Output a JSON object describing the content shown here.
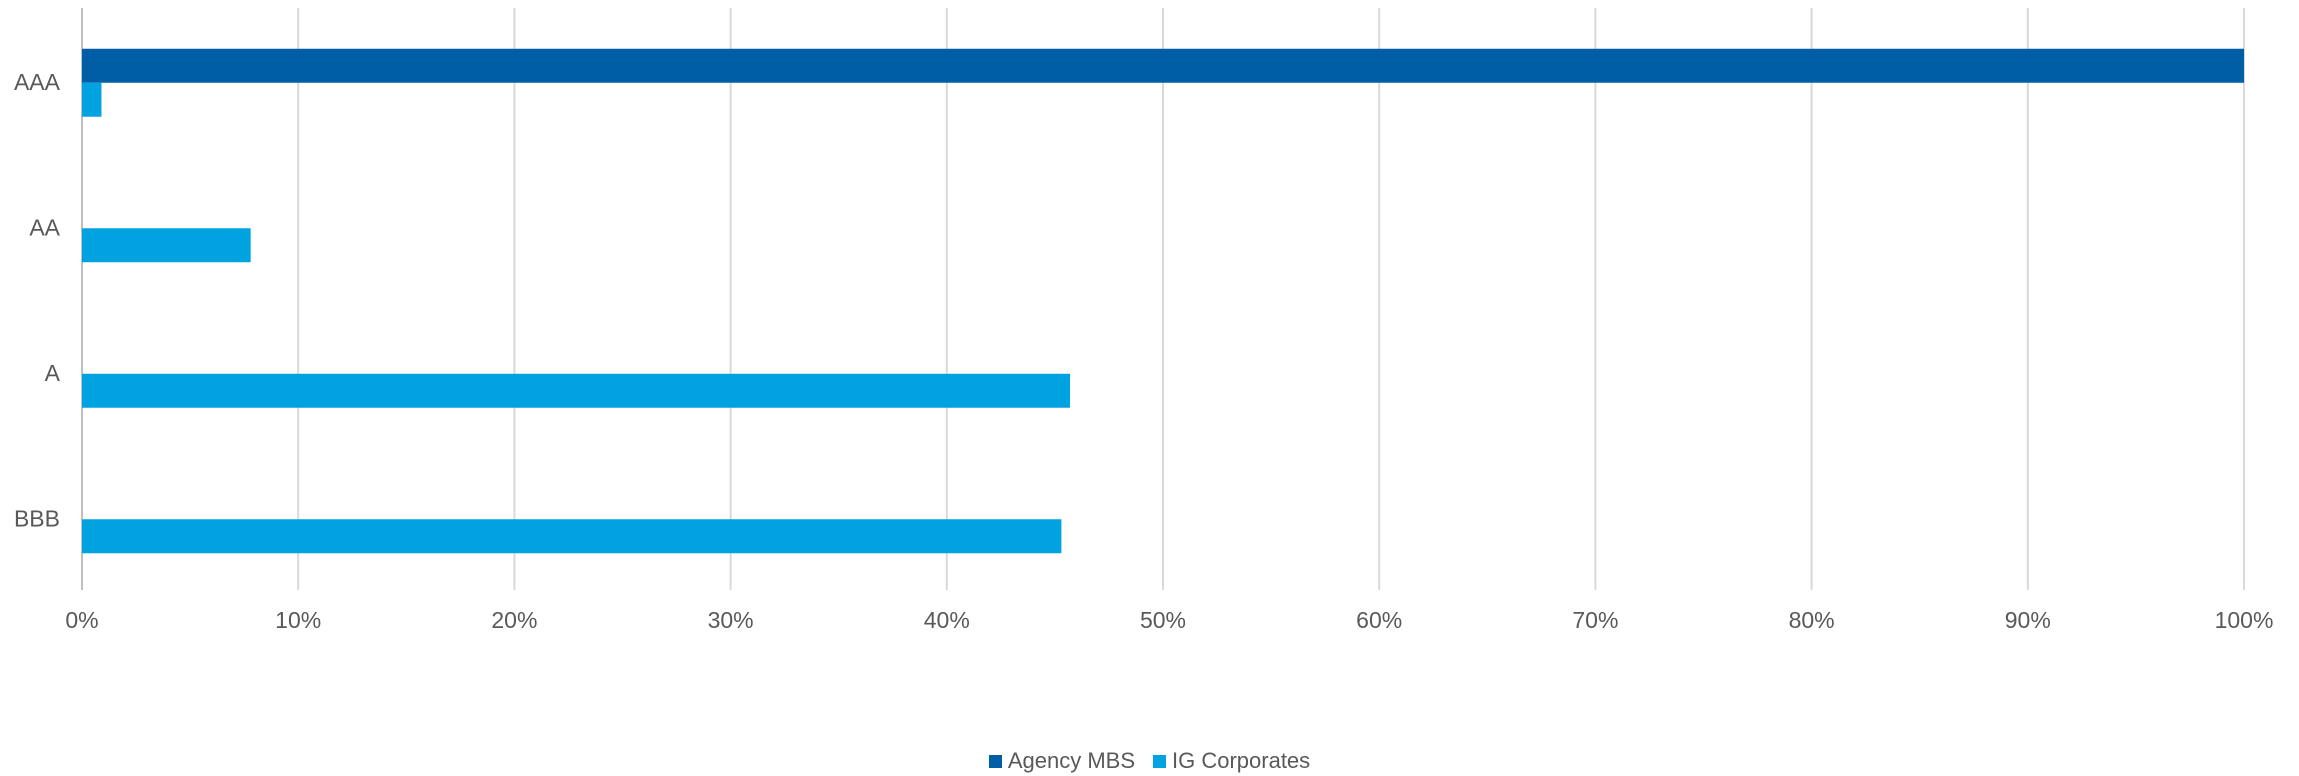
{
  "chart_data": {
    "type": "bar",
    "orientation": "horizontal",
    "categories": [
      "AAA",
      "AA",
      "A",
      "BBB"
    ],
    "series": [
      {
        "name": "Agency MBS",
        "color": "#005EA6",
        "values": [
          100,
          0,
          0,
          0
        ]
      },
      {
        "name": "IG Corporates",
        "color": "#00A3E0",
        "values": [
          0.9,
          7.8,
          45.7,
          45.3
        ]
      }
    ],
    "xlim": [
      0,
      100
    ],
    "x_ticks": [
      "0%",
      "10%",
      "20%",
      "30%",
      "40%",
      "50%",
      "60%",
      "70%",
      "80%",
      "90%",
      "100%"
    ],
    "grid": "vertical",
    "legend": "bottom-center",
    "title": "",
    "xlabel": "",
    "ylabel": ""
  }
}
